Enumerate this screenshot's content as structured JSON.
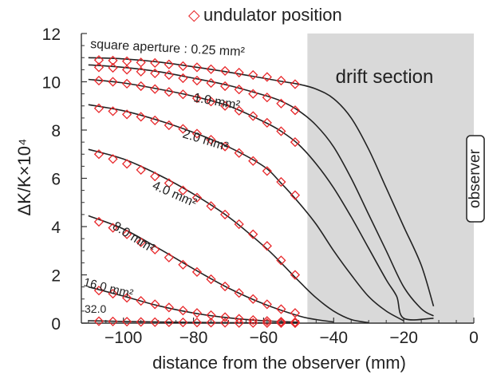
{
  "chart_data": {
    "type": "line",
    "legend": {
      "marker": "◇",
      "label": "undulator position",
      "position": "top-center"
    },
    "xlabel": "distance from the observer (mm)",
    "ylabel": "ΔK/K×10⁴",
    "xlim": [
      -112,
      0
    ],
    "ylim": [
      0,
      12
    ],
    "xticks": [
      -100,
      -80,
      -60,
      -40,
      -20,
      0
    ],
    "xtick_labels": [
      "−100",
      "−80",
      "−60",
      "−40",
      "−20",
      "0"
    ],
    "yticks": [
      0,
      2,
      4,
      6,
      8,
      10,
      12
    ],
    "drift_region": {
      "x_from": -47.5,
      "x_to": 0,
      "label": "drift section",
      "color": "#d9d9d9"
    },
    "observer_label": "observer",
    "marker_color": "#e8272a",
    "line_color": "#222222",
    "curve_color_drift": "#555555",
    "series": [
      {
        "label": "square aperture : 0.25 mm²",
        "curve": [
          [
            -110,
            11.0
          ],
          [
            -100,
            10.95
          ],
          [
            -90,
            10.82
          ],
          [
            -80,
            10.62
          ],
          [
            -70,
            10.4
          ],
          [
            -60,
            10.15
          ],
          [
            -55,
            10.02
          ],
          [
            -50,
            9.9
          ],
          [
            -45,
            9.7
          ],
          [
            -40,
            9.3
          ],
          [
            -35,
            8.5
          ],
          [
            -30,
            7.2
          ],
          [
            -25,
            5.6
          ],
          [
            -20,
            4.0
          ],
          [
            -15,
            2.4
          ],
          [
            -11.5,
            0.7
          ]
        ],
        "markers": [
          [
            -107,
            10.9
          ],
          [
            -103,
            10.88
          ],
          [
            -99,
            10.85
          ],
          [
            -95,
            10.8
          ],
          [
            -91,
            10.78
          ],
          [
            -87,
            10.72
          ],
          [
            -83,
            10.65
          ],
          [
            -79,
            10.6
          ],
          [
            -75,
            10.52
          ],
          [
            -71,
            10.45
          ],
          [
            -67,
            10.38
          ],
          [
            -63,
            10.28
          ],
          [
            -59,
            10.2
          ],
          [
            -55,
            10.05
          ],
          [
            -51,
            9.9
          ]
        ]
      },
      {
        "label": "",
        "curve": [
          [
            -110,
            10.7
          ],
          [
            -100,
            10.6
          ],
          [
            -90,
            10.42
          ],
          [
            -80,
            10.15
          ],
          [
            -70,
            9.85
          ],
          [
            -60,
            9.45
          ],
          [
            -55,
            9.2
          ],
          [
            -50,
            8.8
          ],
          [
            -45,
            8.2
          ],
          [
            -40,
            7.3
          ],
          [
            -35,
            6.0
          ],
          [
            -30,
            4.5
          ],
          [
            -25,
            3.0
          ],
          [
            -20,
            1.5
          ],
          [
            -15,
            0.6
          ],
          [
            -11.5,
            0.3
          ]
        ],
        "markers": [
          [
            -107,
            10.6
          ],
          [
            -103,
            10.58
          ],
          [
            -99,
            10.5
          ],
          [
            -95,
            10.42
          ],
          [
            -91,
            10.35
          ],
          [
            -87,
            10.28
          ],
          [
            -83,
            10.15
          ],
          [
            -79,
            10.05
          ],
          [
            -75,
            9.95
          ],
          [
            -71,
            9.82
          ],
          [
            -67,
            9.68
          ],
          [
            -63,
            9.5
          ],
          [
            -59,
            9.35
          ],
          [
            -55,
            9.1
          ],
          [
            -51,
            8.82
          ]
        ]
      },
      {
        "label": "1.0 mm²",
        "curve": [
          [
            -110,
            10.1
          ],
          [
            -100,
            9.95
          ],
          [
            -90,
            9.7
          ],
          [
            -80,
            9.4
          ],
          [
            -70,
            9.0
          ],
          [
            -60,
            8.35
          ],
          [
            -55,
            7.95
          ],
          [
            -50,
            7.4
          ],
          [
            -45,
            6.6
          ],
          [
            -40,
            5.6
          ],
          [
            -35,
            4.4
          ],
          [
            -30,
            3.1
          ],
          [
            -25,
            1.8
          ],
          [
            -22,
            1.1
          ],
          [
            -20,
            0.2
          ],
          [
            -11.5,
            0.2
          ]
        ],
        "markers": [
          [
            -107,
            10.05
          ],
          [
            -103,
            10.0
          ],
          [
            -99,
            9.92
          ],
          [
            -95,
            9.82
          ],
          [
            -91,
            9.7
          ],
          [
            -87,
            9.58
          ],
          [
            -83,
            9.48
          ],
          [
            -79,
            9.32
          ],
          [
            -75,
            9.18
          ],
          [
            -71,
            9.0
          ],
          [
            -67,
            8.8
          ],
          [
            -63,
            8.58
          ],
          [
            -59,
            8.3
          ],
          [
            -55,
            7.95
          ],
          [
            -51,
            7.5
          ]
        ]
      },
      {
        "label": "2.0 mm²",
        "curve": [
          [
            -110,
            9.05
          ],
          [
            -100,
            8.8
          ],
          [
            -90,
            8.4
          ],
          [
            -80,
            7.9
          ],
          [
            -70,
            7.3
          ],
          [
            -60,
            6.5
          ],
          [
            -55,
            5.8
          ],
          [
            -50,
            5.0
          ],
          [
            -45,
            4.1
          ],
          [
            -40,
            3.0
          ],
          [
            -35,
            2.0
          ],
          [
            -30,
            1.1
          ],
          [
            -25,
            0.5
          ],
          [
            -20,
            0.1
          ]
        ],
        "markers": [
          [
            -107,
            8.9
          ],
          [
            -103,
            8.78
          ],
          [
            -99,
            8.65
          ],
          [
            -95,
            8.55
          ],
          [
            -91,
            8.4
          ],
          [
            -87,
            8.2
          ],
          [
            -83,
            8.05
          ],
          [
            -79,
            7.85
          ],
          [
            -75,
            7.6
          ],
          [
            -71,
            7.32
          ],
          [
            -67,
            7.05
          ],
          [
            -63,
            6.72
          ],
          [
            -59,
            6.3
          ],
          [
            -55,
            5.85
          ],
          [
            -51,
            5.3
          ]
        ]
      },
      {
        "label": "4.0 mm²",
        "curve": [
          [
            -110,
            7.2
          ],
          [
            -100,
            6.8
          ],
          [
            -90,
            6.15
          ],
          [
            -80,
            5.35
          ],
          [
            -70,
            4.4
          ],
          [
            -60,
            3.2
          ],
          [
            -55,
            2.5
          ],
          [
            -50,
            1.75
          ],
          [
            -45,
            1.05
          ],
          [
            -40,
            0.5
          ],
          [
            -35,
            0.15
          ],
          [
            -30,
            0.02
          ]
        ],
        "markers": [
          [
            -107,
            7.0
          ],
          [
            -103,
            6.8
          ],
          [
            -99,
            6.6
          ],
          [
            -95,
            6.35
          ],
          [
            -91,
            6.08
          ],
          [
            -87,
            5.8
          ],
          [
            -83,
            5.5
          ],
          [
            -79,
            5.2
          ],
          [
            -75,
            4.85
          ],
          [
            -71,
            4.5
          ],
          [
            -67,
            4.1
          ],
          [
            -63,
            3.68
          ],
          [
            -59,
            3.2
          ],
          [
            -55,
            2.6
          ],
          [
            -51,
            2.0
          ]
        ]
      },
      {
        "label": "8.0 mm²",
        "curve": [
          [
            -110,
            4.45
          ],
          [
            -100,
            3.9
          ],
          [
            -90,
            3.1
          ],
          [
            -80,
            2.25
          ],
          [
            -70,
            1.45
          ],
          [
            -60,
            0.8
          ],
          [
            -50,
            0.3
          ],
          [
            -45,
            0.15
          ],
          [
            -40,
            0.05
          ]
        ],
        "markers": [
          [
            -107,
            4.2
          ],
          [
            -103,
            3.95
          ],
          [
            -99,
            3.68
          ],
          [
            -95,
            3.35
          ],
          [
            -91,
            3.05
          ],
          [
            -87,
            2.72
          ],
          [
            -83,
            2.42
          ],
          [
            -79,
            2.12
          ],
          [
            -75,
            1.82
          ],
          [
            -71,
            1.52
          ],
          [
            -67,
            1.25
          ],
          [
            -63,
            1.0
          ],
          [
            -59,
            0.78
          ],
          [
            -55,
            0.58
          ],
          [
            -51,
            0.42
          ]
        ]
      },
      {
        "label": "16.0 mm²",
        "curve": [
          [
            -110,
            1.5
          ],
          [
            -100,
            1.12
          ],
          [
            -90,
            0.72
          ],
          [
            -80,
            0.42
          ],
          [
            -70,
            0.22
          ],
          [
            -60,
            0.1
          ],
          [
            -50,
            0.04
          ]
        ],
        "markers": [
          [
            -107,
            1.35
          ],
          [
            -103,
            1.22
          ],
          [
            -99,
            1.05
          ],
          [
            -95,
            0.92
          ],
          [
            -91,
            0.78
          ],
          [
            -87,
            0.65
          ],
          [
            -83,
            0.52
          ],
          [
            -79,
            0.42
          ],
          [
            -75,
            0.33
          ],
          [
            -71,
            0.25
          ],
          [
            -67,
            0.18
          ],
          [
            -63,
            0.13
          ],
          [
            -59,
            0.09
          ],
          [
            -55,
            0.06
          ],
          [
            -51,
            0.04
          ]
        ]
      },
      {
        "label": "32.0",
        "curve": [
          [
            -110,
            0.1
          ],
          [
            -100,
            0.07
          ],
          [
            -90,
            0.05
          ],
          [
            -80,
            0.03
          ],
          [
            -70,
            0.02
          ],
          [
            -60,
            0.01
          ],
          [
            -50,
            0.0
          ]
        ],
        "markers": [
          [
            -107,
            0.08
          ],
          [
            -103,
            0.07
          ],
          [
            -99,
            0.06
          ],
          [
            -95,
            0.05
          ],
          [
            -91,
            0.04
          ],
          [
            -87,
            0.035
          ],
          [
            -83,
            0.03
          ],
          [
            -79,
            0.025
          ],
          [
            -75,
            0.02
          ],
          [
            -71,
            0.015
          ],
          [
            -67,
            0.01
          ],
          [
            -63,
            0.01
          ],
          [
            -59,
            0.005
          ],
          [
            -55,
            0.005
          ],
          [
            -51,
            0.0
          ]
        ]
      }
    ]
  }
}
